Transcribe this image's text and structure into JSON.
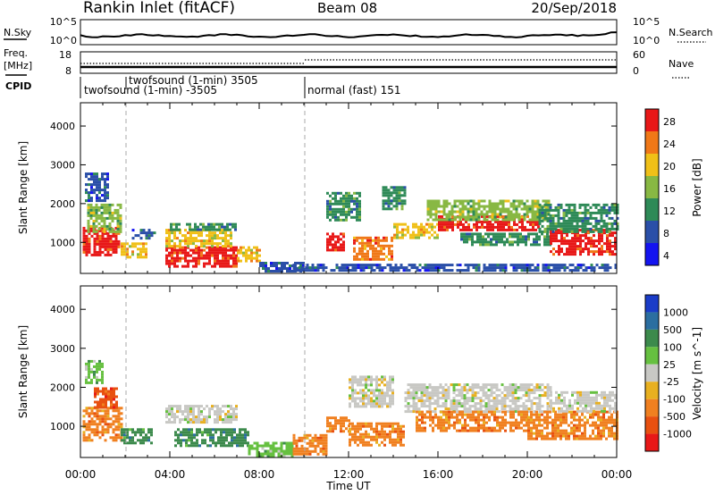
{
  "header": {
    "station": "Rankin Inlet (fitACF)",
    "beam": "Beam 08",
    "date": "20/Sep/2018"
  },
  "noise_panel": {
    "left_label": "N.Sky",
    "left_ticks": [
      "10^5",
      "10^0"
    ],
    "right_label": "N.Search",
    "right_ticks": [
      "10^5",
      "10^0"
    ]
  },
  "freq_panel": {
    "left_label_line1": "Freq.",
    "left_label_line2": "[MHz]",
    "left_ticks": [
      "18",
      "8"
    ],
    "right_label": "Nave",
    "right_ticks": [
      "60",
      "0"
    ]
  },
  "cpid": {
    "label": "CPID",
    "entries": [
      {
        "text": "twofsound (1-min) -3505",
        "start_hour": 0
      },
      {
        "text": "twofsound (1-min) 3505",
        "start_hour": 2
      },
      {
        "text": "normal (fast) 151",
        "start_hour": 10
      }
    ]
  },
  "axes": {
    "ylabel": "Slant Range [km]",
    "xlabel": "Time UT",
    "x_ticks": [
      "00:00",
      "04:00",
      "08:00",
      "12:00",
      "16:00",
      "20:00",
      "00:00"
    ],
    "y_ticks": [
      "1000",
      "2000",
      "3000",
      "4000"
    ]
  },
  "power_scale": {
    "label": "Power [dB]",
    "ticks": [
      "4",
      "8",
      "12",
      "16",
      "20",
      "24",
      "28"
    ],
    "colors": [
      "#1414f0",
      "#2a4fa8",
      "#2e8a57",
      "#88b843",
      "#f0c018",
      "#f07818",
      "#e81818"
    ]
  },
  "velocity_scale": {
    "label": "Velocity [m s^-1]",
    "ticks": [
      "1000",
      "500",
      "100",
      "25",
      "-25",
      "-100",
      "-500",
      "-1000"
    ],
    "colors": [
      "#1a3cc8",
      "#2b6ea0",
      "#3c8a4c",
      "#66c040",
      "#c8c8c4",
      "#e8b020",
      "#f08020",
      "#e85010",
      "#e81818"
    ]
  },
  "chart_data": [
    {
      "type": "heatmap",
      "title": "Power",
      "xlabel": "Time UT",
      "ylabel": "Slant Range [km]",
      "x_range_hours": [
        0,
        24
      ],
      "y_range_km": [
        200,
        4600
      ],
      "value_range": [
        0,
        30
      ],
      "patches": [
        {
          "t0": 0.1,
          "t1": 1.7,
          "r0": 650,
          "r1": 1400,
          "v": 28
        },
        {
          "t0": 0.3,
          "t1": 1.8,
          "r0": 1300,
          "r1": 2000,
          "v": 16
        },
        {
          "t0": 0.2,
          "t1": 1.2,
          "r0": 2100,
          "r1": 2800,
          "v": 8
        },
        {
          "t0": 1.8,
          "t1": 3.0,
          "r0": 650,
          "r1": 1000,
          "v": 20
        },
        {
          "t0": 2.3,
          "t1": 3.3,
          "r0": 1100,
          "r1": 1350,
          "v": 8
        },
        {
          "t0": 3.8,
          "t1": 7.0,
          "r0": 400,
          "r1": 900,
          "v": 28
        },
        {
          "t0": 3.8,
          "t1": 6.8,
          "r0": 900,
          "r1": 1350,
          "v": 20
        },
        {
          "t0": 4.0,
          "t1": 7.0,
          "r0": 1350,
          "r1": 1500,
          "v": 10
        },
        {
          "t0": 7.0,
          "t1": 8.0,
          "r0": 550,
          "r1": 900,
          "v": 20
        },
        {
          "t0": 8.0,
          "t1": 10.0,
          "r0": 250,
          "r1": 500,
          "v": 8
        },
        {
          "t0": 11.0,
          "t1": 11.8,
          "r0": 800,
          "r1": 1250,
          "v": 28
        },
        {
          "t0": 11.0,
          "t1": 12.5,
          "r0": 1600,
          "r1": 2300,
          "v": 10
        },
        {
          "t0": 12.2,
          "t1": 14.0,
          "r0": 550,
          "r1": 1150,
          "v": 24
        },
        {
          "t0": 13.5,
          "t1": 14.5,
          "r0": 1850,
          "r1": 2450,
          "v": 12
        },
        {
          "t0": 14.0,
          "t1": 16.0,
          "r0": 1100,
          "r1": 1500,
          "v": 20
        },
        {
          "t0": 16.0,
          "t1": 20.5,
          "r0": 1350,
          "r1": 1700,
          "v": 28
        },
        {
          "t0": 15.5,
          "t1": 21.0,
          "r0": 1550,
          "r1": 2100,
          "v": 16
        },
        {
          "t0": 17.0,
          "t1": 21.0,
          "r0": 950,
          "r1": 1250,
          "v": 12
        },
        {
          "t0": 21.0,
          "t1": 24.0,
          "r0": 700,
          "r1": 1350,
          "v": 28
        },
        {
          "t0": 20.5,
          "t1": 24.0,
          "r0": 1300,
          "r1": 2000,
          "v": 12
        },
        {
          "t0": 9.5,
          "t1": 24.0,
          "r0": 250,
          "r1": 450,
          "v": 6
        }
      ]
    },
    {
      "type": "heatmap",
      "title": "Velocity",
      "xlabel": "Time UT",
      "ylabel": "Slant Range [km]",
      "x_range_hours": [
        0,
        24
      ],
      "y_range_km": [
        200,
        4600
      ],
      "value_range": [
        -1000,
        1000
      ],
      "patches": [
        {
          "t0": 0.1,
          "t1": 1.8,
          "r0": 650,
          "r1": 1500,
          "v": -400
        },
        {
          "t0": 0.6,
          "t1": 1.6,
          "r0": 1500,
          "r1": 2000,
          "v": -800
        },
        {
          "t0": 0.2,
          "t1": 1.0,
          "r0": 2100,
          "r1": 2700,
          "v": 80
        },
        {
          "t0": 1.8,
          "t1": 3.2,
          "r0": 600,
          "r1": 950,
          "v": 150
        },
        {
          "t0": 3.8,
          "t1": 7.0,
          "r0": 1100,
          "r1": 1550,
          "v": 0
        },
        {
          "t0": 4.2,
          "t1": 7.5,
          "r0": 500,
          "r1": 950,
          "v": 300
        },
        {
          "t0": 7.5,
          "t1": 9.5,
          "r0": 250,
          "r1": 600,
          "v": 60
        },
        {
          "t0": 9.5,
          "t1": 11.0,
          "r0": 250,
          "r1": 800,
          "v": -300
        },
        {
          "t0": 11.0,
          "t1": 12.0,
          "r0": 900,
          "r1": 1250,
          "v": -400
        },
        {
          "t0": 12.0,
          "t1": 14.5,
          "r0": 500,
          "r1": 1100,
          "v": -400
        },
        {
          "t0": 12.0,
          "t1": 14.0,
          "r0": 1500,
          "r1": 2300,
          "v": 0
        },
        {
          "t0": 14.5,
          "t1": 21.0,
          "r0": 1400,
          "r1": 2100,
          "v": 0
        },
        {
          "t0": 15.0,
          "t1": 20.0,
          "r0": 900,
          "r1": 1400,
          "v": -300
        },
        {
          "t0": 20.0,
          "t1": 24.0,
          "r0": 700,
          "r1": 1400,
          "v": -400
        },
        {
          "t0": 21.0,
          "t1": 24.0,
          "r0": 1400,
          "r1": 1900,
          "v": 0
        }
      ]
    }
  ]
}
